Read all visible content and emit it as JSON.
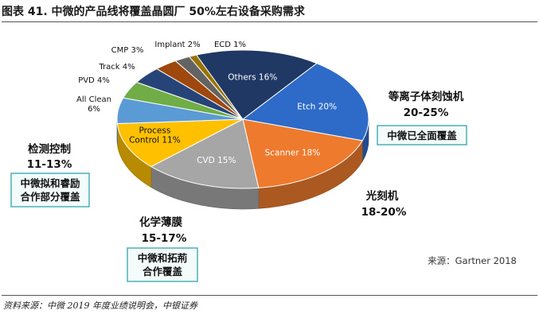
{
  "figure": {
    "title": "图表 41. 中微的产品线将覆盖晶圆厂 50%左右设备采购需求",
    "source": "资料来源：中微 2019 年度业绩说明会，中银证券",
    "chart_source": "来源：Gartner 2018"
  },
  "colors": {
    "etch": "#2e6bc8",
    "scanner": "#ee7a2e",
    "cvd": "#a6a6a6",
    "process_control": "#ffc000",
    "all_clean": "#5b9bd5",
    "pvd": "#70ad47",
    "track": "#264478",
    "cmp": "#9e480e",
    "implant": "#636363",
    "ecd": "#997300",
    "others": "#1f3864",
    "callout_border": "#4bb0b8",
    "callout_fill": "#f4fbfb"
  },
  "chart_data": {
    "type": "pie",
    "slices": [
      {
        "name": "Etch",
        "label": "Etch 20%",
        "value": 20,
        "color": "#2e6bc8",
        "text_color": "#ffffff"
      },
      {
        "name": "Scanner",
        "label": "Scanner 18%",
        "value": 18,
        "color": "#ee7a2e",
        "text_color": "#ffffff"
      },
      {
        "name": "CVD",
        "label": "CVD 15%",
        "value": 15,
        "color": "#a6a6a6",
        "text_color": "#ffffff"
      },
      {
        "name": "Process Control",
        "label": "Process\nControl 11%",
        "value": 11,
        "color": "#ffc000",
        "text_color": "#111111"
      },
      {
        "name": "All Clean",
        "label": "All Clean\n6%",
        "value": 6,
        "color": "#5b9bd5",
        "text_color": "#111111"
      },
      {
        "name": "PVD",
        "label": "PVD 4%",
        "value": 4,
        "color": "#70ad47",
        "text_color": "#111111"
      },
      {
        "name": "Track",
        "label": "Track 4%",
        "value": 4,
        "color": "#264478",
        "text_color": "#111111"
      },
      {
        "name": "CMP",
        "label": "CMP 3%",
        "value": 3,
        "color": "#9e480e",
        "text_color": "#111111"
      },
      {
        "name": "Implant",
        "label": "Implant 2%",
        "value": 2,
        "color": "#636363",
        "text_color": "#111111"
      },
      {
        "name": "ECD",
        "label": "ECD 1%",
        "value": 1,
        "color": "#997300",
        "text_color": "#111111"
      },
      {
        "name": "Others",
        "label": "Others 16%",
        "value": 16,
        "color": "#1f3864",
        "text_color": "#ffffff"
      }
    ]
  },
  "annotations": {
    "etch_cn": "等离子体刻蚀机",
    "etch_range": "20-25%",
    "etch_box": "中微已全面覆盖",
    "litho_cn": "光刻机",
    "litho_range": "18-20%",
    "cvd_cn": "化学薄膜",
    "cvd_range": "15-17%",
    "cvd_box_line1": "中微和拓荊",
    "cvd_box_line2": "合作覆盖",
    "inspect_cn": "检测控制",
    "inspect_range": "11-13%",
    "inspect_box_line1": "中微拟和睿励",
    "inspect_box_line2": "合作部分覆盖"
  }
}
